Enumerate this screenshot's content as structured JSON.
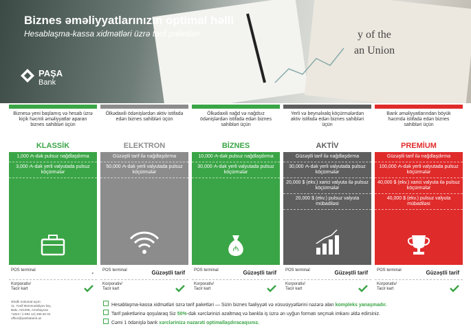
{
  "header": {
    "title": "Biznes əməliyyatlarınızın optimal həlli",
    "subtitle": "Hesablaşma-kassa xidmətləri üzrə tarif paketləri",
    "logo": "PAŞA",
    "logo_sub": "Bank"
  },
  "rows": {
    "pos": "POS terminal",
    "card": "Korporativ/ Tacir kart"
  },
  "packages": [
    {
      "description": "Biznesə yeni başlamış və hesab üzrə kiçik həcmli əməliyyatlar aparan biznes sahibləri üçün",
      "name": "KLASSİK",
      "features": [
        "1,000 ₼-dək pulsuz nağdlaşdırma",
        "3,000 ₼-dək yerli valyutada pulsuz köçürmələr"
      ],
      "pos": "-"
    },
    {
      "description": "Ölkədaxili ödənişlərdən aktiv istifadə edən biznes sahibləri üçün",
      "name": "ELEKTRON",
      "features": [
        "Güzəştli tarif ilə nağdlaşdırma",
        "50,000 ₼-dək yerli valyutada pulsuz köçürmələr"
      ],
      "pos": "Güzəştli tarif"
    },
    {
      "description": "Ölkədaxili nağd və nağdsız ödənişlərdən istifadə edən biznes sahibləri üçün",
      "name": "BİZNES",
      "features": [
        "10,000 ₼-dək pulsuz nağdlaşdırma",
        "30,000 ₼-dək yerli valyutada pulsuz köçürmələr"
      ],
      "pos": "Güzəştli tarif"
    },
    {
      "description": "Yerli və beynəlxalq köçürmələrdən aktiv istifadə edən biznes sahibləri üçün",
      "name": "AKTİV",
      "features": [
        "Güzəştli tarif ilə nağdlaşdırma",
        "30,000 ₼-dək yerli valyutada pulsuz köçürmələr",
        "20,000 $ (ekv.) xarici valyuta ilə pulsuz köçürmələr",
        "20,000 $ (ekv.) pulsuz valyuta mübadiləsi"
      ],
      "pos": "Güzəştli tarif"
    },
    {
      "description": "Bank əməliyyatlarından böyük həcmdə istifadə edən biznes sahibləri üçün",
      "name": "PREMİUM",
      "features": [
        "Güzəştli tarif ilə nağdlaşdırma",
        "100,000 ₼-dək yerli valyutada pulsuz köçürmələr",
        "40,000 $ (ekv.) xarici valyuta ilə pulsuz köçürmələr",
        "40,000 $ (ekv.) pulsuz valyuta mübadiləsi"
      ],
      "pos": "Güzəştli tarif"
    }
  ],
  "contact": [
    "Ətraflı məlumat üçün:",
    "11, Yusif Məmmədəliyev küç.",
    "Bakı, AZ1005, Azərbaycan",
    "*1823 / (+994 12) 496 50 04",
    "office@pashabank.az"
  ],
  "notes": [
    [
      "Hesablaşma-kassa xidmətləri üzrə tarif paketləri — Sizin biznes fəaliyyəti və xüsusiyyətlərini nəzərə alan ",
      "kompleks yanaşmadır."
    ],
    [
      "Tarif paketlərinə qoşularaq Siz ",
      "50%",
      "-dək xərclərinizi azaltmaq və bankla iş üzrə ən uyğun formatı seçmək imkanı əldə edirsiniz."
    ],
    [
      "Cəmi 1 ödənişlə bank ",
      "xərclərinizə nəzarəti optimallaşdıracaqsınız."
    ]
  ]
}
